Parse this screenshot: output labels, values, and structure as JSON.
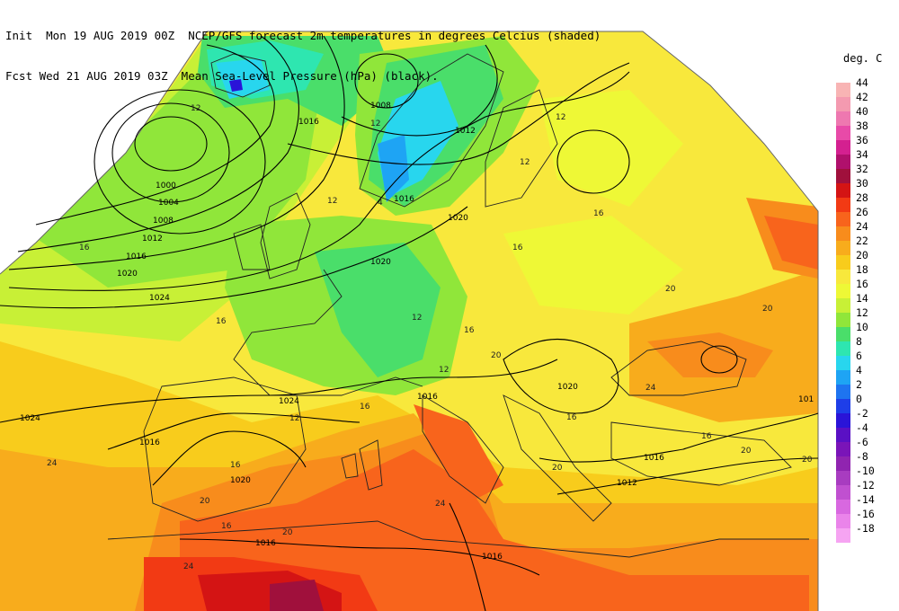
{
  "header": {
    "line1": "Init  Mon 19 AUG 2019 00Z  NCEP/GFS forecast 2m temperatures in degrees Celcius (shaded)",
    "line2": "Fcst Wed 21 AUG 2019 03Z  Mean Sea-Level Pressure (hPa) (black)."
  },
  "legend": {
    "title": "deg. C",
    "entries": [
      {
        "label": "44",
        "color": "#f8b4b4"
      },
      {
        "label": "42",
        "color": "#f49ab0"
      },
      {
        "label": "40",
        "color": "#ee78b0"
      },
      {
        "label": "38",
        "color": "#e84aa8"
      },
      {
        "label": "36",
        "color": "#d42090"
      },
      {
        "label": "34",
        "color": "#b0106c"
      },
      {
        "label": "32",
        "color": "#a0103c"
      },
      {
        "label": "30",
        "color": "#d41414"
      },
      {
        "label": "28",
        "color": "#f23a14"
      },
      {
        "label": "26",
        "color": "#f8641c"
      },
      {
        "label": "24",
        "color": "#f88c1c"
      },
      {
        "label": "22",
        "color": "#f8ac1c"
      },
      {
        "label": "20",
        "color": "#f8cc1c"
      },
      {
        "label": "18",
        "color": "#f8e83c"
      },
      {
        "label": "16",
        "color": "#eef836"
      },
      {
        "label": "14",
        "color": "#c8f036"
      },
      {
        "label": "12",
        "color": "#90e63a"
      },
      {
        "label": "10",
        "color": "#4ade6a"
      },
      {
        "label": "8",
        "color": "#2ee6b0"
      },
      {
        "label": "6",
        "color": "#28d6ee"
      },
      {
        "label": "4",
        "color": "#1ea4f4"
      },
      {
        "label": "2",
        "color": "#1e74f0"
      },
      {
        "label": "0",
        "color": "#1e3ee8"
      },
      {
        "label": "-2",
        "color": "#2a14d8"
      },
      {
        "label": "-4",
        "color": "#5a10c4"
      },
      {
        "label": "-6",
        "color": "#7a14b8"
      },
      {
        "label": "-8",
        "color": "#9024b0"
      },
      {
        "label": "-10",
        "color": "#a83cc0"
      },
      {
        "label": "-12",
        "color": "#c050d0"
      },
      {
        "label": "-14",
        "color": "#d868e0"
      },
      {
        "label": "-16",
        "color": "#ea84ea"
      },
      {
        "label": "-18",
        "color": "#f6a4f2"
      }
    ]
  },
  "isobar_labels": [
    "1008",
    "1016",
    "1012",
    "1000",
    "1004",
    "1008",
    "1012",
    "1016",
    "1020",
    "1024",
    "1016",
    "1020",
    "1020",
    "1024",
    "1024",
    "1016",
    "1020",
    "1012",
    "1016",
    "1016",
    "1020",
    "1016",
    "101",
    "1016",
    "1012",
    "1016"
  ],
  "temp_labels": [
    "4",
    "12",
    "12",
    "12",
    "16",
    "12",
    "12",
    "16",
    "16",
    "16",
    "12",
    "20",
    "16",
    "20",
    "24",
    "20",
    "24",
    "12",
    "16",
    "16",
    "20",
    "16",
    "20",
    "16",
    "12",
    "20",
    "24",
    "20",
    "16",
    "20",
    "24"
  ]
}
